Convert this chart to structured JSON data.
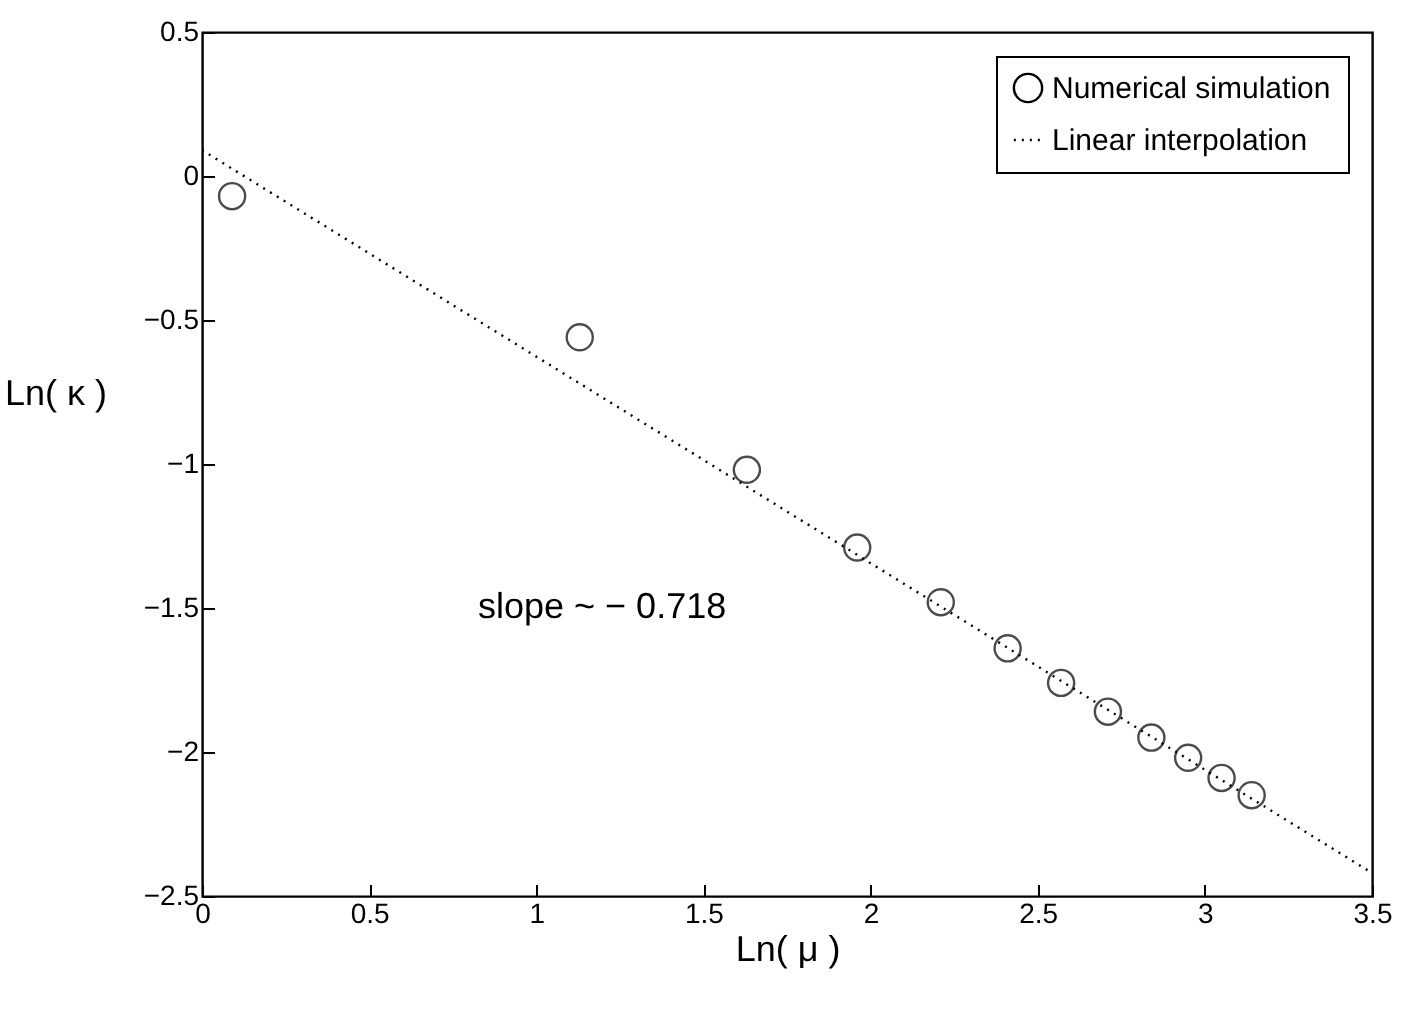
{
  "chart_data": {
    "type": "scatter",
    "xlabel": "Ln( μ )",
    "ylabel": "Ln( κ )",
    "xlim": [
      0,
      3.5
    ],
    "ylim": [
      -2.5,
      0.5
    ],
    "xticks": [
      0,
      0.5,
      1,
      1.5,
      2,
      2.5,
      3,
      3.5
    ],
    "yticks": [
      -2.5,
      -2,
      -1.5,
      -1,
      -0.5,
      0,
      0.5
    ],
    "grid": false,
    "legend": "top right",
    "annotations": [
      "slope ~ − 0.718"
    ],
    "series": [
      {
        "name": "Numerical simulation",
        "type": "scatter",
        "marker": "circle",
        "color": "#000000",
        "x": [
          0.09,
          1.13,
          1.63,
          1.96,
          2.21,
          2.41,
          2.57,
          2.71,
          2.84,
          2.95,
          3.05,
          3.14
        ],
        "values": [
          -0.07,
          -0.56,
          -1.02,
          -1.29,
          -1.48,
          -1.64,
          -1.76,
          -1.86,
          -1.95,
          -2.02,
          -2.09,
          -2.15
        ]
      },
      {
        "name": "Linear interpolation",
        "type": "line",
        "line_style": "dotted",
        "marker": "none",
        "color": "#000000",
        "x": [
          0,
          3.5
        ],
        "values": [
          0.09,
          -2.42
        ]
      }
    ]
  }
}
